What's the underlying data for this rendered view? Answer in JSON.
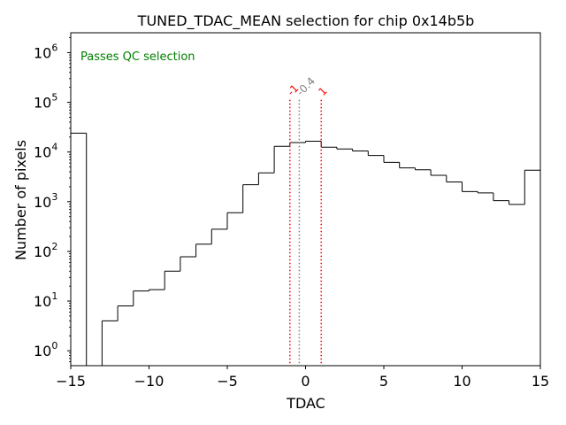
{
  "chart_data": {
    "type": "bar",
    "style": "step-histogram",
    "title": "TUNED_TDAC_MEAN selection for chip 0x14b5b",
    "xlabel": "TDAC",
    "ylabel": "Number of pixels",
    "xlim": [
      -15,
      15
    ],
    "ylim_log10": [
      -0.3,
      6.4
    ],
    "yscale": "log",
    "bin_edges": [
      -15,
      -14,
      -13,
      -12,
      -11,
      -10,
      -9,
      -8,
      -7,
      -6,
      -5,
      -4,
      -3,
      -2,
      -1,
      0,
      1,
      2,
      3,
      4,
      5,
      6,
      7,
      8,
      9,
      10,
      11,
      12,
      13,
      14,
      15
    ],
    "values": [
      24000,
      0,
      4,
      8,
      16,
      17,
      40,
      78,
      140,
      280,
      600,
      2200,
      3800,
      13000,
      15500,
      16500,
      12500,
      11500,
      10500,
      8500,
      6200,
      4800,
      4400,
      3400,
      2500,
      1600,
      1500,
      1050,
      880,
      4300
    ],
    "x_ticks": [
      -15,
      -10,
      -5,
      0,
      5,
      10,
      15
    ],
    "x_tick_labels": [
      "−15",
      "−10",
      "−5",
      "0",
      "5",
      "10",
      "15"
    ],
    "y_ticks": [
      0,
      1,
      2,
      3,
      4,
      5,
      6
    ],
    "y_tick_base": "10",
    "vlines": [
      {
        "x": -1,
        "label": "-1",
        "color": "#ff0000"
      },
      {
        "x": -0.4,
        "label": "-0.4",
        "color": "#808080"
      },
      {
        "x": 1,
        "label": "1",
        "color": "#ff0000"
      }
    ],
    "annotation": "Passes QC selection",
    "annotation_color": "#008000",
    "grid": false
  }
}
